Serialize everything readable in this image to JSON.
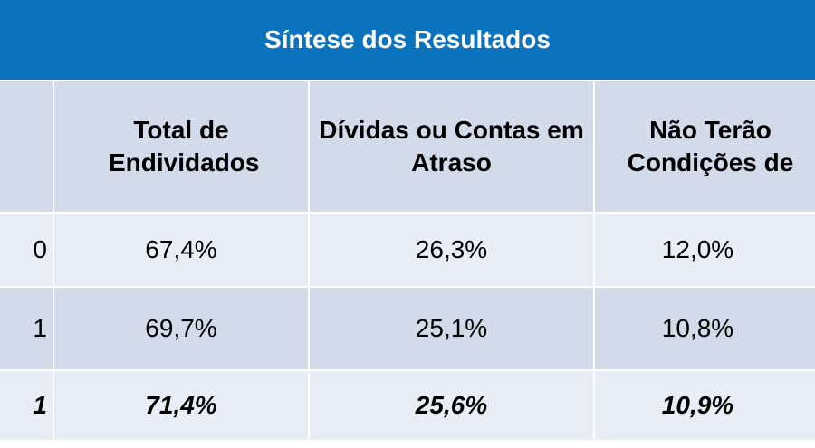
{
  "title": "Síntese dos Resultados",
  "columns": [
    "",
    "Total de Endividados",
    "Dívidas ou Contas em Atraso",
    "Não Terão Condições de"
  ],
  "rows": [
    [
      "0",
      "67,4%",
      "26,3%",
      "12,0%"
    ],
    [
      "1",
      "69,7%",
      "25,1%",
      "10,8%"
    ],
    [
      "1",
      "71,4%",
      "25,6%",
      "10,9%"
    ]
  ]
}
